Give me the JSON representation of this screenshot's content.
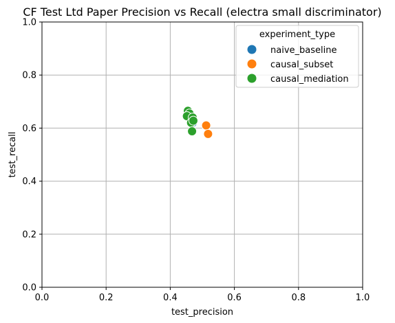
{
  "chart_data": {
    "type": "scatter",
    "title": "CF Test Ltd Paper Precision vs Recall (electra small discriminator)",
    "xlabel": "test_precision",
    "ylabel": "test_recall",
    "xlim": [
      0.0,
      1.0
    ],
    "ylim": [
      0.0,
      1.0
    ],
    "xticks": [
      "0.0",
      "0.2",
      "0.4",
      "0.6",
      "0.8",
      "1.0"
    ],
    "yticks": [
      "0.0",
      "0.2",
      "0.4",
      "0.6",
      "0.8",
      "1.0"
    ],
    "grid": true,
    "legend": {
      "title": "experiment_type",
      "placement": "upper-right"
    },
    "series": [
      {
        "name": "naive_baseline",
        "color": "#1f77b4",
        "points": [
          {
            "x": 0.46,
            "y": 0.64
          },
          {
            "x": 0.47,
            "y": 0.62
          }
        ]
      },
      {
        "name": "causal_subset",
        "color": "#ff7f0e",
        "points": [
          {
            "x": 0.512,
            "y": 0.61
          },
          {
            "x": 0.518,
            "y": 0.578
          }
        ]
      },
      {
        "name": "causal_mediation",
        "color": "#2ca02c",
        "points": [
          {
            "x": 0.455,
            "y": 0.665
          },
          {
            "x": 0.458,
            "y": 0.65
          },
          {
            "x": 0.46,
            "y": 0.655
          },
          {
            "x": 0.452,
            "y": 0.645
          },
          {
            "x": 0.465,
            "y": 0.62
          },
          {
            "x": 0.47,
            "y": 0.64
          },
          {
            "x": 0.472,
            "y": 0.628
          },
          {
            "x": 0.468,
            "y": 0.588
          }
        ]
      }
    ]
  }
}
